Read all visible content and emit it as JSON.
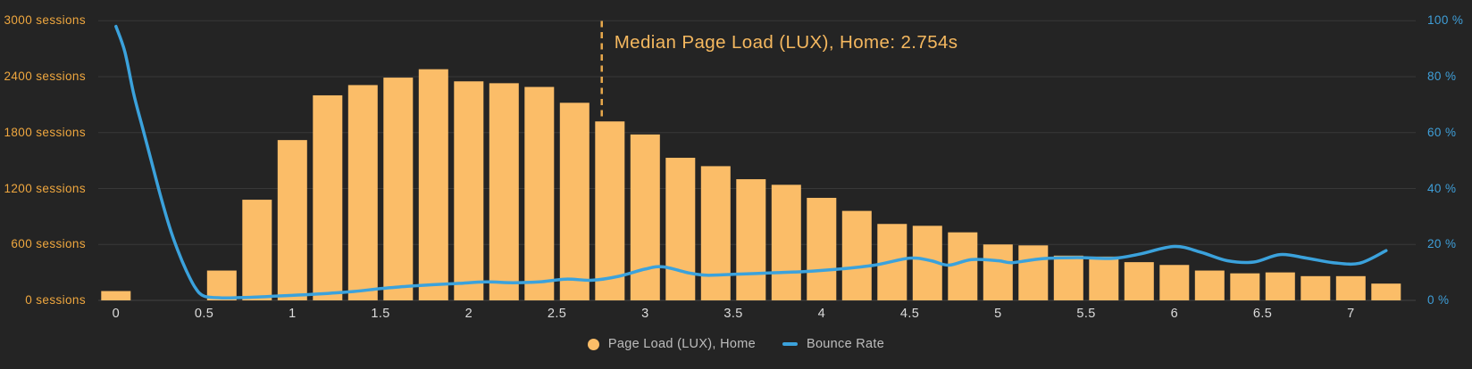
{
  "chart_data": {
    "type": "bar+line",
    "x_bin_width": 0.2,
    "x": [
      0,
      0.2,
      0.4,
      0.6,
      0.8,
      1.0,
      1.2,
      1.4,
      1.6,
      1.8,
      2.0,
      2.2,
      2.4,
      2.6,
      2.8,
      3.0,
      3.2,
      3.4,
      3.6,
      3.8,
      4.0,
      4.2,
      4.4,
      4.6,
      4.8,
      5.0,
      5.2,
      5.4,
      5.6,
      5.8,
      6.0,
      6.2,
      6.4,
      6.6,
      6.8,
      7.0,
      7.2
    ],
    "series": [
      {
        "name": "Page Load (LUX), Home",
        "type": "bar",
        "axis": "left",
        "unit": "sessions",
        "values": [
          100,
          0,
          0,
          320,
          1080,
          1720,
          2200,
          2310,
          2390,
          2480,
          2350,
          2330,
          2290,
          2120,
          1920,
          1780,
          1530,
          1440,
          1300,
          1240,
          1100,
          960,
          820,
          800,
          730,
          600,
          590,
          480,
          470,
          410,
          380,
          320,
          290,
          300,
          260,
          260,
          180
        ]
      },
      {
        "name": "Bounce Rate",
        "type": "line",
        "axis": "right",
        "unit": "%",
        "points": [
          [
            0,
            98
          ],
          [
            0.05,
            89
          ],
          [
            0.1,
            74
          ],
          [
            0.15,
            62
          ],
          [
            0.2,
            50
          ],
          [
            0.25,
            38
          ],
          [
            0.3,
            27
          ],
          [
            0.35,
            18
          ],
          [
            0.4,
            10.5
          ],
          [
            0.45,
            4.5
          ],
          [
            0.5,
            1.5
          ],
          [
            0.6,
            0.9
          ],
          [
            0.7,
            1.0
          ],
          [
            0.8,
            1.2
          ],
          [
            0.9,
            1.5
          ],
          [
            1.0,
            1.8
          ],
          [
            1.1,
            2.1
          ],
          [
            1.2,
            2.5
          ],
          [
            1.35,
            3.2
          ],
          [
            1.5,
            4.2
          ],
          [
            1.65,
            5.0
          ],
          [
            1.8,
            5.6
          ],
          [
            1.95,
            6.1
          ],
          [
            2.1,
            6.6
          ],
          [
            2.25,
            6.3
          ],
          [
            2.4,
            6.6
          ],
          [
            2.55,
            7.6
          ],
          [
            2.7,
            7.2
          ],
          [
            2.85,
            8.6
          ],
          [
            3.0,
            11.2
          ],
          [
            3.1,
            12.0
          ],
          [
            3.25,
            9.8
          ],
          [
            3.35,
            9.0
          ],
          [
            3.5,
            9.3
          ],
          [
            3.7,
            9.8
          ],
          [
            3.9,
            10.3
          ],
          [
            4.1,
            11.2
          ],
          [
            4.3,
            12.6
          ],
          [
            4.5,
            15.1
          ],
          [
            4.62,
            14.2
          ],
          [
            4.72,
            12.6
          ],
          [
            4.85,
            14.6
          ],
          [
            5.0,
            14.2
          ],
          [
            5.08,
            13.5
          ],
          [
            5.25,
            14.9
          ],
          [
            5.45,
            15.3
          ],
          [
            5.65,
            15.0
          ],
          [
            5.8,
            16.5
          ],
          [
            6.0,
            19.3
          ],
          [
            6.15,
            17.2
          ],
          [
            6.3,
            14.2
          ],
          [
            6.45,
            13.7
          ],
          [
            6.6,
            16.4
          ],
          [
            6.75,
            15.1
          ],
          [
            6.9,
            13.5
          ],
          [
            7.05,
            13.3
          ],
          [
            7.2,
            17.8
          ]
        ]
      }
    ],
    "left_axis": {
      "max": 3000,
      "step": 600,
      "tick_labels": [
        "0 sessions",
        "600 sessions",
        "1200 sessions",
        "1800 sessions",
        "2400 sessions",
        "3000 sessions"
      ]
    },
    "right_axis": {
      "max": 100,
      "step": 20,
      "tick_labels": [
        "0 %",
        "20 %",
        "40 %",
        "60 %",
        "80 %",
        "100 %"
      ]
    },
    "x_axis": {
      "tick_step": 0.5,
      "tick_labels": [
        "0",
        "0.5",
        "1",
        "1.5",
        "2",
        "2.5",
        "3",
        "3.5",
        "4",
        "4.5",
        "5",
        "5.5",
        "6",
        "6.5",
        "7"
      ]
    },
    "annotation": {
      "label": "Median Page Load (LUX), Home: 2.754s",
      "x_value": 2.754
    },
    "colors": {
      "background": "#242424",
      "bar": "#FBBD68",
      "line": "#3BA2DC",
      "left_axis_text": "#EFA73F",
      "right_axis_text": "#3F9FD9",
      "x_axis_text": "#DCDCDC",
      "legend_text": "#BDBDBD",
      "annotation_text": "#F5B85F",
      "annotation_line": "#E8A94C",
      "gridline": "#383838",
      "baseline": "#424242"
    }
  }
}
